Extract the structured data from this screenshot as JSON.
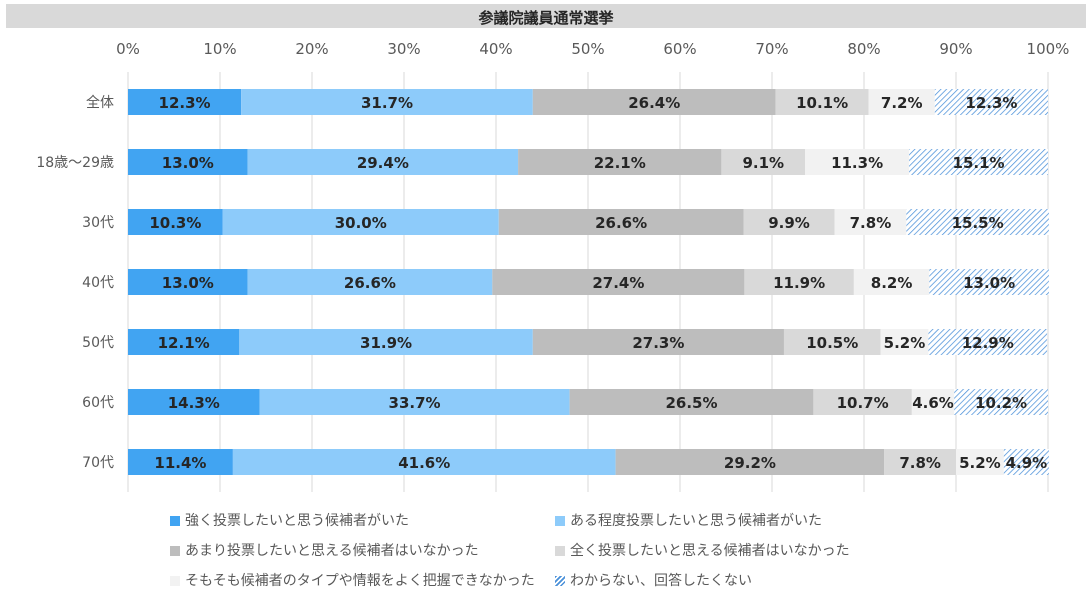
{
  "chart_data": {
    "type": "bar",
    "orientation": "horizontal",
    "stacked": "percent",
    "title": "参議院議員通常選挙",
    "categories": [
      "全体",
      "18歳～29歳",
      "30代",
      "40代",
      "50代",
      "60代",
      "70代"
    ],
    "x_ticks": [
      "0%",
      "10%",
      "20%",
      "30%",
      "40%",
      "50%",
      "60%",
      "70%",
      "80%",
      "90%",
      "100%"
    ],
    "xlim": [
      0,
      100
    ],
    "grid": true,
    "legend_position": "bottom",
    "series": [
      {
        "name": "強く投票したいと思う候補者がいた",
        "color": "#41a4f2",
        "pattern": "solid",
        "values": [
          12.3,
          13.0,
          10.3,
          13.0,
          12.1,
          14.3,
          11.4
        ],
        "labels": [
          "12.3%",
          "13.0%",
          "10.3%",
          "13.0%",
          "12.1%",
          "14.3%",
          "11.4%"
        ]
      },
      {
        "name": "ある程度投票したいと思う候補者がいた",
        "color": "#8dcbfa",
        "pattern": "solid",
        "values": [
          31.7,
          29.4,
          30.0,
          26.6,
          31.9,
          33.7,
          41.6
        ],
        "labels": [
          "31.7%",
          "29.4%",
          "30.0%",
          "26.6%",
          "31.9%",
          "33.7%",
          "41.6%"
        ]
      },
      {
        "name": "あまり投票したいと思える候補者はいなかった",
        "color": "#bdbdbd",
        "pattern": "solid",
        "values": [
          26.4,
          22.1,
          26.6,
          27.4,
          27.3,
          26.5,
          29.2
        ],
        "labels": [
          "26.4%",
          "22.1%",
          "26.6%",
          "27.4%",
          "27.3%",
          "26.5%",
          "29.2%"
        ]
      },
      {
        "name": "全く投票したいと思える候補者はいなかった",
        "color": "#d9d9d9",
        "pattern": "solid",
        "values": [
          10.1,
          9.1,
          9.9,
          11.9,
          10.5,
          10.7,
          7.8
        ],
        "labels": [
          "10.1%",
          "9.1%",
          "9.9%",
          "11.9%",
          "10.5%",
          "10.7%",
          "7.8%"
        ]
      },
      {
        "name": "そもそも候補者のタイプや情報をよく把握できなかった",
        "color": "#f2f2f2",
        "pattern": "solid",
        "values": [
          7.2,
          11.3,
          7.8,
          8.2,
          5.2,
          4.6,
          5.2
        ],
        "labels": [
          "7.2%",
          "11.3%",
          "7.8%",
          "8.2%",
          "5.2%",
          "4.6%",
          "5.2%"
        ]
      },
      {
        "name": "わからない、回答したくない",
        "color": "#4a90d9",
        "pattern": "hatch",
        "values": [
          12.3,
          15.1,
          15.5,
          13.0,
          12.9,
          10.2,
          4.9
        ],
        "labels": [
          "12.3%",
          "15.1%",
          "15.5%",
          "13.0%",
          "12.9%",
          "10.2%",
          "4.9%"
        ]
      }
    ]
  },
  "colors": {
    "title_bg": "#d9d9d9",
    "grid": "#d9d9d9",
    "text": "#595959",
    "label": "#262626"
  }
}
